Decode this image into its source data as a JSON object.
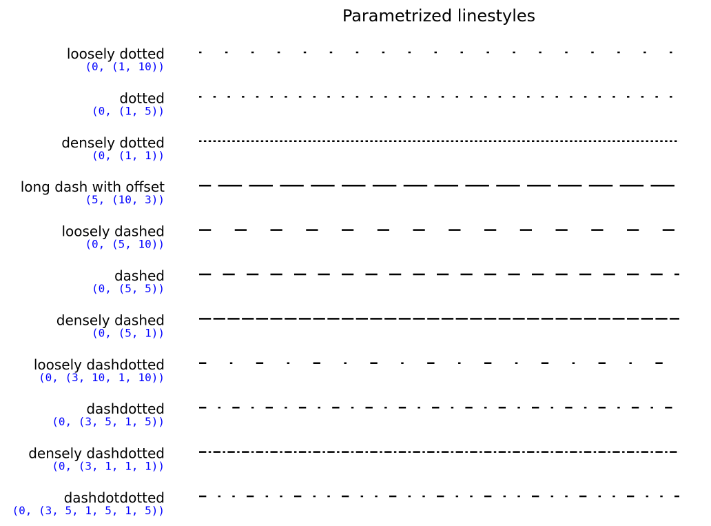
{
  "chart_data": {
    "type": "line",
    "title": "Parametrized linestyles",
    "line_color": "#000000",
    "label_color": "#000000",
    "code_color": "#0000ff",
    "series": [
      {
        "name": "loosely dotted",
        "code": "(0, (1, 10))",
        "offset": 0,
        "pattern": [
          1,
          10
        ]
      },
      {
        "name": "dotted",
        "code": "(0, (1, 5))",
        "offset": 0,
        "pattern": [
          1,
          5
        ]
      },
      {
        "name": "densely dotted",
        "code": "(0, (1, 1))",
        "offset": 0,
        "pattern": [
          1,
          1
        ]
      },
      {
        "name": "long dash with offset",
        "code": "(5, (10, 3))",
        "offset": 5,
        "pattern": [
          10,
          3
        ]
      },
      {
        "name": "loosely dashed",
        "code": "(0, (5, 10))",
        "offset": 0,
        "pattern": [
          5,
          10
        ]
      },
      {
        "name": "dashed",
        "code": "(0, (5, 5))",
        "offset": 0,
        "pattern": [
          5,
          5
        ]
      },
      {
        "name": "densely dashed",
        "code": "(0, (5, 1))",
        "offset": 0,
        "pattern": [
          5,
          1
        ]
      },
      {
        "name": "loosely dashdotted",
        "code": "(0, (3, 10, 1, 10))",
        "offset": 0,
        "pattern": [
          3,
          10,
          1,
          10
        ]
      },
      {
        "name": "dashdotted",
        "code": "(0, (3, 5, 1, 5))",
        "offset": 0,
        "pattern": [
          3,
          5,
          1,
          5
        ]
      },
      {
        "name": "densely dashdotted",
        "code": "(0, (3, 1, 1, 1))",
        "offset": 0,
        "pattern": [
          3,
          1,
          1,
          1
        ]
      },
      {
        "name": "dashdotdotted",
        "code": "(0, (3, 5, 1, 5, 1, 5))",
        "offset": 0,
        "pattern": [
          3,
          5,
          1,
          5,
          1,
          5
        ]
      }
    ]
  }
}
